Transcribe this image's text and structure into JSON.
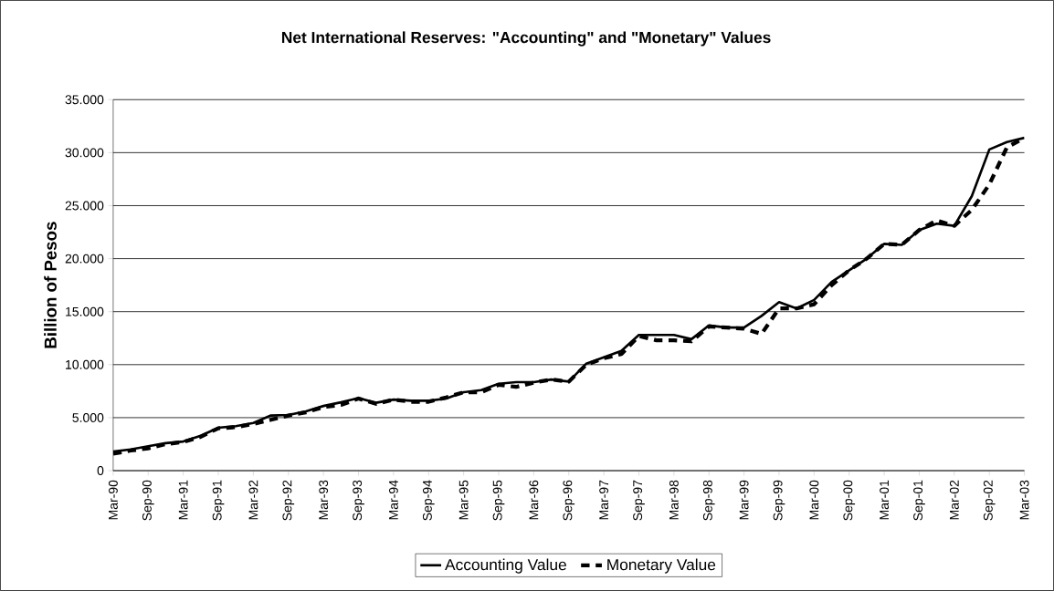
{
  "chart_data": {
    "type": "line",
    "title": "Net International Reserves: \"Accounting\" and \"Monetary\" Values",
    "ylabel": "Billion of Pesos",
    "categories": [
      "Mar-90",
      null,
      "Sep-90",
      null,
      "Mar-91",
      null,
      "Sep-91",
      null,
      "Mar-92",
      null,
      "Sep-92",
      null,
      "Mar-93",
      null,
      "Sep-93",
      null,
      "Mar-94",
      null,
      "Sep-94",
      null,
      "Mar-95",
      null,
      "Sep-95",
      null,
      "Mar-96",
      null,
      "Sep-96",
      null,
      "Mar-97",
      null,
      "Sep-97",
      null,
      "Mar-98",
      null,
      "Sep-98",
      null,
      "Mar-99",
      null,
      "Sep-99",
      null,
      "Mar-00",
      null,
      "Sep-00",
      null,
      "Mar-01",
      null,
      "Sep-01",
      null,
      "Mar-02",
      null,
      "Sep-02",
      null,
      "Mar-03"
    ],
    "series": [
      {
        "name": "Accounting Value",
        "color": "#000000",
        "line_style": "solid",
        "values": [
          1800,
          2000,
          2300,
          2600,
          2750,
          3300,
          4050,
          4200,
          4500,
          5200,
          5250,
          5600,
          6100,
          6450,
          6850,
          6400,
          6700,
          6600,
          6600,
          6800,
          7400,
          7600,
          8200,
          8350,
          8350,
          8600,
          8400,
          10100,
          10700,
          11300,
          12800,
          12800,
          12800,
          12400,
          13700,
          13500,
          13500,
          14600,
          15900,
          15300,
          16100,
          17800,
          18900,
          20000,
          21400,
          21300,
          22700,
          23300,
          23100,
          25900,
          30300,
          31000,
          31400
        ]
      },
      {
        "name": "Monetary Value",
        "color": "#000000",
        "line_style": "dashed",
        "values": [
          1600,
          1900,
          2100,
          2500,
          2700,
          3200,
          4000,
          4100,
          4400,
          4800,
          5200,
          5500,
          6000,
          6200,
          6800,
          6300,
          6700,
          6500,
          6500,
          6900,
          7400,
          7400,
          8100,
          7900,
          8300,
          8600,
          8400,
          10000,
          10600,
          11000,
          12700,
          12300,
          12300,
          12200,
          13600,
          13500,
          13400,
          12900,
          15300,
          15300,
          15700,
          17500,
          18900,
          20000,
          21400,
          21300,
          22700,
          23600,
          23100,
          24600,
          27000,
          30500,
          31400
        ]
      }
    ],
    "ylim": [
      0,
      35000
    ],
    "yticks": [
      0,
      {
        "value": 5000,
        "label": "5.000"
      },
      {
        "value": 10000,
        "label": "10.000"
      },
      {
        "value": 15000,
        "label": "15.000"
      },
      {
        "value": 20000,
        "label": "20.000"
      },
      {
        "value": 25000,
        "label": "25.000"
      },
      {
        "value": 30000,
        "label": "30.000"
      },
      {
        "value": 35000,
        "label": "35.000"
      }
    ],
    "grid": "y",
    "legend": "bottom",
    "marker": "none"
  }
}
